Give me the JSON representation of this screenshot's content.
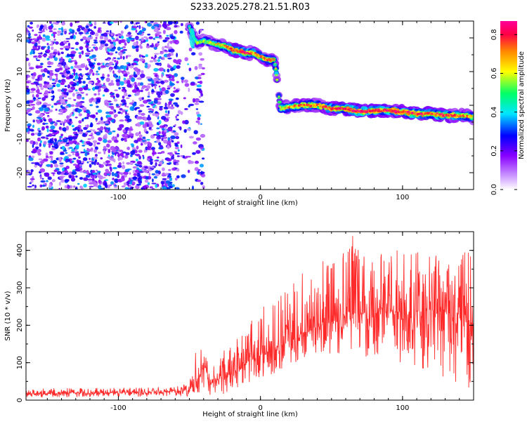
{
  "title": "S233.2025.278.21.51.R03",
  "chart_data": [
    {
      "type": "heatmap",
      "xlabel": "Height of straight line (km)",
      "ylabel": "Frequency (Hz)",
      "xlim": [
        -165,
        150
      ],
      "ylim": [
        -25,
        25
      ],
      "xticks": [
        -100,
        0,
        100
      ],
      "yticks": [
        -20,
        -10,
        0,
        10,
        20
      ],
      "colorbar": {
        "label": "Normalized spectral amplitude",
        "range": [
          0.0,
          0.87
        ],
        "ticks": [
          0.0,
          0.2,
          0.4,
          0.6,
          0.8
        ],
        "colormap": [
          "#ffffff",
          "#cc99ff",
          "#8800ff",
          "#0000ff",
          "#00e6ff",
          "#00ff66",
          "#ffff00",
          "#ff8800",
          "#ff0044",
          "#ff0099"
        ]
      },
      "ridge": [
        {
          "x": -50,
          "y": 23.0,
          "amp": 0.55
        },
        {
          "x": -45,
          "y": 18.5,
          "amp": 0.5
        },
        {
          "x": -40,
          "y": 19.0,
          "amp": 0.55
        },
        {
          "x": -35,
          "y": 18.5,
          "amp": 0.55
        },
        {
          "x": -30,
          "y": 18.0,
          "amp": 0.6
        },
        {
          "x": -25,
          "y": 17.5,
          "amp": 0.65
        },
        {
          "x": -20,
          "y": 16.5,
          "amp": 0.75
        },
        {
          "x": -15,
          "y": 16.0,
          "amp": 0.8
        },
        {
          "x": -10,
          "y": 15.5,
          "amp": 0.8
        },
        {
          "x": -5,
          "y": 15.5,
          "amp": 0.7
        },
        {
          "x": 0,
          "y": 14.5,
          "amp": 0.7
        },
        {
          "x": 5,
          "y": 13.5,
          "amp": 0.7
        },
        {
          "x": 10,
          "y": 13.5,
          "amp": 0.65
        },
        {
          "x": 14,
          "y": -1.0,
          "amp": 0.6
        },
        {
          "x": 20,
          "y": -0.5,
          "amp": 0.65
        },
        {
          "x": 30,
          "y": 0.0,
          "amp": 0.7
        },
        {
          "x": 40,
          "y": 0.0,
          "amp": 0.7
        },
        {
          "x": 50,
          "y": -1.0,
          "amp": 0.75
        },
        {
          "x": 60,
          "y": -1.0,
          "amp": 0.8
        },
        {
          "x": 70,
          "y": -2.0,
          "amp": 0.85
        },
        {
          "x": 80,
          "y": -1.5,
          "amp": 0.8
        },
        {
          "x": 90,
          "y": -1.5,
          "amp": 0.8
        },
        {
          "x": 100,
          "y": -2.0,
          "amp": 0.8
        },
        {
          "x": 110,
          "y": -2.5,
          "amp": 0.8
        },
        {
          "x": 120,
          "y": -2.5,
          "amp": 0.75
        },
        {
          "x": 130,
          "y": -3.0,
          "amp": 0.75
        },
        {
          "x": 140,
          "y": -3.0,
          "amp": 0.7
        },
        {
          "x": 150,
          "y": -3.5,
          "amp": 0.65
        }
      ]
    },
    {
      "type": "line",
      "xlabel": "Height of straight line (km)",
      "ylabel": "SNR (10 * v/v)",
      "xlim": [
        -165,
        150
      ],
      "ylim": [
        0,
        450
      ],
      "xticks": [
        -100,
        0,
        100
      ],
      "yticks": [
        0,
        100,
        200,
        300,
        400
      ],
      "series": [
        {
          "color": "#ff2a2a",
          "x": [
            -165,
            -150,
            -135,
            -120,
            -105,
            -90,
            -75,
            -60,
            -50,
            -45,
            -40,
            -35,
            -30,
            -25,
            -20,
            -15,
            -10,
            -5,
            0,
            5,
            10,
            15,
            20,
            25,
            30,
            35,
            40,
            45,
            50,
            55,
            60,
            65,
            70,
            75,
            80,
            85,
            90,
            95,
            100,
            105,
            110,
            115,
            120,
            125,
            130,
            135,
            140,
            145,
            150
          ],
          "y": [
            18,
            18,
            19,
            19,
            20,
            20,
            21,
            22,
            25,
            55,
            80,
            45,
            55,
            65,
            75,
            85,
            100,
            110,
            120,
            130,
            140,
            150,
            160,
            170,
            180,
            188,
            196,
            204,
            210,
            215,
            220,
            225,
            230,
            230,
            232,
            234,
            235,
            235,
            236,
            236,
            237,
            237,
            238,
            238,
            235,
            230,
            225,
            215,
            205
          ],
          "y_max": [
            30,
            32,
            32,
            33,
            33,
            34,
            35,
            38,
            45,
            150,
            130,
            90,
            120,
            150,
            150,
            170,
            200,
            220,
            260,
            270,
            280,
            300,
            320,
            330,
            340,
            350,
            370,
            380,
            390,
            400,
            410,
            440,
            420,
            410,
            420,
            400,
            410,
            400,
            410,
            400,
            395,
            400,
            390,
            385,
            380,
            380,
            370,
            440,
            400
          ],
          "y_min": [
            8,
            8,
            8,
            9,
            9,
            9,
            9,
            10,
            10,
            18,
            15,
            5,
            12,
            15,
            25,
            35,
            45,
            50,
            55,
            60,
            60,
            80,
            90,
            100,
            110,
            110,
            115,
            120,
            110,
            120,
            120,
            120,
            110,
            115,
            110,
            105,
            100,
            100,
            100,
            90,
            85,
            80,
            75,
            60,
            50,
            40,
            35,
            30,
            20
          ]
        }
      ]
    }
  ]
}
